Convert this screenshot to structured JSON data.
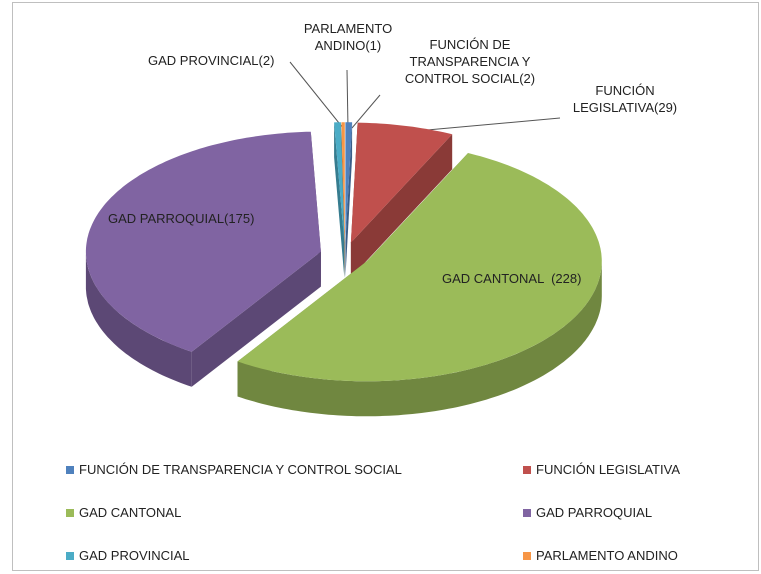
{
  "chart_data": {
    "type": "pie",
    "categories": [
      "FUNCIÓN DE TRANSPARENCIA Y CONTROL SOCIAL",
      "FUNCIÓN LEGISLATIVA",
      "GAD CANTONAL",
      "GAD PARROQUIAL",
      "GAD PROVINCIAL",
      "PARLAMENTO ANDINO"
    ],
    "values": [
      2,
      29,
      228,
      175,
      2,
      1
    ],
    "value_labels": [
      "FUNCIÓN DE TRANSPARENCIA Y CONTROL SOCIAL(2)",
      "FUNCIÓN LEGISLATIVA(29)",
      "GAD CANTONAL  (228)",
      "GAD PARROQUIAL(175)",
      "GAD PROVINCIAL(2)",
      "PARLAMENTO ANDINO(1)"
    ],
    "colors": [
      "#4f81bd",
      "#c0504d",
      "#9bbb59",
      "#8064a2",
      "#4bacc6",
      "#f79646"
    ],
    "legend": "bottom"
  }
}
